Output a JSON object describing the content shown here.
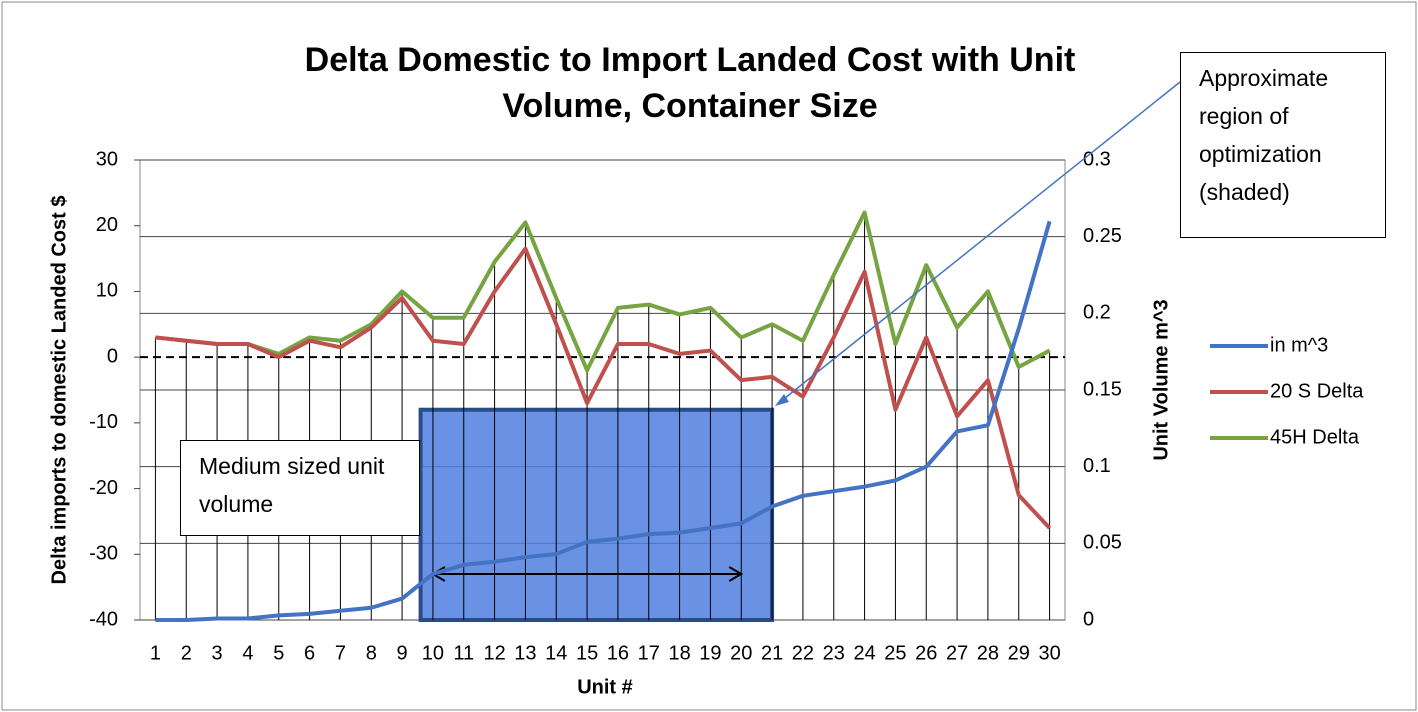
{
  "chart_data": {
    "type": "line",
    "title": [
      "Delta Domestic to Import Landed Cost with Unit",
      "Volume, Container Size"
    ],
    "x_label": "Unit #",
    "y_label": "Delta imports to domestic Landed Cost $",
    "y2_label": "Unit Volume m^3",
    "annotations": [
      "Medium sized unit volume",
      "Approximate region of optimization (shaded)"
    ],
    "categories": [
      1,
      2,
      3,
      4,
      5,
      6,
      7,
      8,
      9,
      10,
      11,
      12,
      13,
      14,
      15,
      16,
      17,
      18,
      19,
      20,
      21,
      22,
      23,
      24,
      25,
      26,
      27,
      28,
      29,
      30
    ],
    "ylim": [
      -40,
      30
    ],
    "yticks": [
      -40,
      -30,
      -20,
      -10,
      0,
      10,
      20,
      30
    ],
    "y2lim": [
      0,
      0.3
    ],
    "y2ticks": [
      0,
      0.05,
      0.1,
      0.15,
      0.2,
      0.25,
      0.3
    ],
    "grid": true,
    "legend": "right",
    "series": [
      {
        "name": "in m^3",
        "color": "#4472c4",
        "axis": "y2",
        "values": [
          0.0,
          0.0,
          0.001,
          0.001,
          0.003,
          0.004,
          0.006,
          0.008,
          0.014,
          0.03,
          0.036,
          0.038,
          0.041,
          0.043,
          0.051,
          0.053,
          0.056,
          0.057,
          0.06,
          0.063,
          0.074,
          0.081,
          0.084,
          0.087,
          0.091,
          0.1,
          0.123,
          0.127,
          0.19,
          0.26
        ]
      },
      {
        "name": "20 S Delta",
        "color": "#c0504d",
        "values": [
          3,
          2.5,
          2,
          2,
          0,
          2.5,
          1.5,
          4.5,
          9,
          2.5,
          2,
          10,
          16.5,
          5,
          -7,
          2,
          2,
          0.5,
          1,
          -3.5,
          -3,
          -6,
          3,
          13,
          -8,
          3,
          -9,
          -3.5,
          -21,
          -26
        ]
      },
      {
        "name": "45H Delta",
        "color": "#77a442",
        "values": [
          3,
          2.5,
          2,
          2,
          0.5,
          3,
          2.5,
          5,
          10,
          6,
          6,
          14.5,
          20.5,
          9,
          -2,
          7.5,
          8,
          6.5,
          7.5,
          3,
          5,
          2.5,
          12.5,
          22,
          2,
          14,
          4.5,
          10,
          -1.5,
          1
        ]
      }
    ]
  }
}
